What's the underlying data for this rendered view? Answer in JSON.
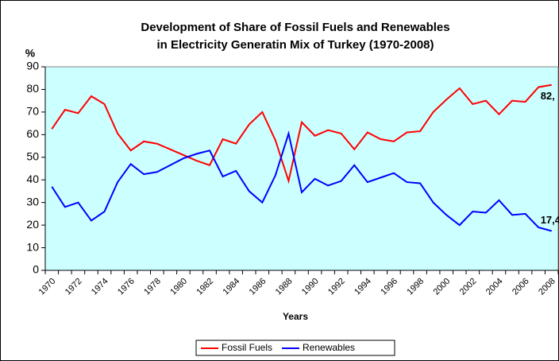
{
  "chart_data": {
    "type": "line",
    "title": [
      "Development of Share of Fossil Fuels and Renewables",
      "in Electricity Generatin Mix of Turkey (1970-2008)"
    ],
    "y_axis_label": "%",
    "x_axis_label": "Years",
    "categories": [
      "1970",
      null,
      "1972",
      null,
      "1974",
      null,
      "1976",
      null,
      "1978",
      null,
      "1980",
      null,
      "1982",
      null,
      "1984",
      null,
      "1986",
      null,
      "1988",
      null,
      "1990",
      null,
      "1992",
      null,
      "1994",
      null,
      "1996",
      null,
      "1998",
      null,
      "2000",
      null,
      "2002",
      null,
      "2004",
      null,
      "2006",
      null,
      "2008"
    ],
    "series": [
      {
        "name": "Fossil Fuels",
        "color": "#ff0000",
        "values": [
          62.5,
          71,
          69.5,
          77,
          73.5,
          60.5,
          53,
          57,
          56,
          53.5,
          51,
          48.5,
          46.5,
          58,
          56,
          64.5,
          70,
          57.5,
          39.5,
          65.5,
          59.5,
          62,
          60.5,
          53.5,
          61,
          58,
          57,
          61,
          61.5,
          70,
          75.5,
          80.5,
          73.5,
          75,
          69,
          75,
          74.5,
          81,
          82
        ],
        "value_labels": {
          "38": "82,"
        }
      },
      {
        "name": "Renewables",
        "color": "#0000ff",
        "values": [
          37,
          28,
          30,
          22,
          26,
          39,
          47,
          42.5,
          43.5,
          46.5,
          49.5,
          51.5,
          53,
          41.5,
          44,
          35,
          30,
          42,
          60.5,
          34.5,
          40.5,
          37.5,
          39.5,
          46.5,
          39,
          41,
          43,
          39,
          38.5,
          30,
          24.5,
          20,
          26,
          25.5,
          31,
          24.5,
          25,
          19,
          17.4
        ],
        "value_labels": {
          "38": "17,4"
        }
      }
    ],
    "ylim": [
      0,
      90
    ],
    "yticks": [
      0,
      10,
      20,
      30,
      40,
      50,
      60,
      70,
      80,
      90
    ],
    "plot_background": "#ccffff",
    "legend": "bottom"
  }
}
